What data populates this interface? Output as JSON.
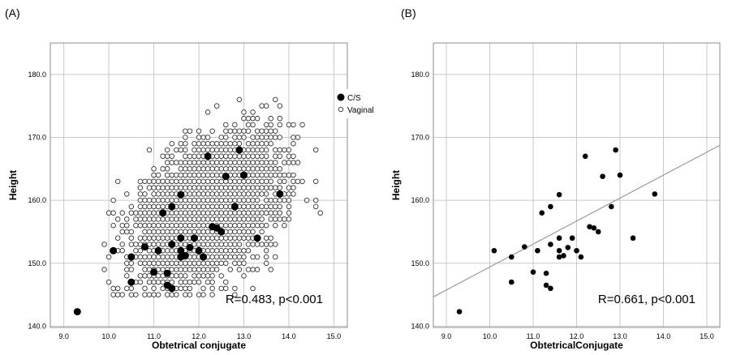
{
  "figure_labels": [
    "(A)",
    "(B)"
  ],
  "chart_data": [
    {
      "type": "scatter",
      "panel_label": "(A)",
      "xlabel": "Obtetrical conjugate",
      "ylabel": "Height",
      "xlim": [
        8.7,
        15.3
      ],
      "ylim": [
        139.8,
        185.0
      ],
      "xticks": [
        9.0,
        10.0,
        11.0,
        12.0,
        13.0,
        14.0,
        15.0
      ],
      "xtick_labels": [
        "9.0",
        "10.0",
        "11.0",
        "12.0",
        "13.0",
        "14.0",
        "15.0"
      ],
      "yticks": [
        140.0,
        150.0,
        160.0,
        170.0,
        180.0
      ],
      "ytick_labels": [
        "140.0",
        "150.0",
        "160.0",
        "170.0",
        "180.0"
      ],
      "grid": true,
      "legend": {
        "position": "top-right",
        "entries": [
          "C/S",
          "Vaginal"
        ]
      },
      "annotation": "R=0.483, p<0.001",
      "series": [
        {
          "name": "C/S",
          "marker": "filled-circle",
          "points": [
            [
              9.3,
              142.3
            ],
            [
              10.1,
              152.0
            ],
            [
              10.5,
              151.0
            ],
            [
              10.5,
              147.0
            ],
            [
              10.8,
              152.6
            ],
            [
              11.0,
              148.6
            ],
            [
              11.1,
              152.0
            ],
            [
              11.2,
              158.0
            ],
            [
              11.3,
              148.4
            ],
            [
              11.3,
              146.5
            ],
            [
              11.4,
              159.0
            ],
            [
              11.4,
              153.0
            ],
            [
              11.4,
              146.0
            ],
            [
              11.6,
              152.0
            ],
            [
              11.6,
              151.0
            ],
            [
              11.6,
              154.0
            ],
            [
              11.6,
              160.9
            ],
            [
              11.7,
              151.2
            ],
            [
              11.8,
              152.5
            ],
            [
              11.9,
              154.0
            ],
            [
              12.0,
              152.0
            ],
            [
              12.1,
              151.0
            ],
            [
              12.2,
              167.0
            ],
            [
              12.3,
              155.8
            ],
            [
              12.4,
              155.6
            ],
            [
              12.5,
              155.0
            ],
            [
              12.6,
              163.8
            ],
            [
              12.8,
              159.0
            ],
            [
              12.9,
              168.0
            ],
            [
              13.0,
              164.0
            ],
            [
              13.3,
              154.0
            ],
            [
              13.8,
              161.0
            ]
          ]
        },
        {
          "name": "Vaginal",
          "marker": "open-circle",
          "generator": {
            "count": 780,
            "seed": 7,
            "x_mean": 12.15,
            "x_sd": 0.78,
            "y_mean": 158.4,
            "y_sd": 5.6,
            "r": 0.47,
            "x_step": 0.1,
            "y_step": 1.0
          }
        }
      ]
    },
    {
      "type": "scatter",
      "panel_label": "(B)",
      "xlabel": "ObtetricalConjugate",
      "ylabel": "Height",
      "xlim": [
        8.7,
        15.3
      ],
      "ylim": [
        139.8,
        185.0
      ],
      "xticks": [
        9.0,
        10.0,
        11.0,
        12.0,
        13.0,
        14.0,
        15.0
      ],
      "xtick_labels": [
        "9.0",
        "10.0",
        "11.0",
        "12.0",
        "13.0",
        "14.0",
        "15.0"
      ],
      "yticks": [
        140.0,
        150.0,
        160.0,
        170.0,
        180.0
      ],
      "ytick_labels": [
        "140.0",
        "150.0",
        "160.0",
        "170.0",
        "180.0"
      ],
      "grid": true,
      "annotation": "R=0.661, p<0.001",
      "fit_line": {
        "intercept": 112.9,
        "slope": 3.65
      },
      "series": [
        {
          "marker": "filled-circle",
          "points": [
            [
              9.3,
              142.3
            ],
            [
              10.1,
              152.0
            ],
            [
              10.5,
              151.0
            ],
            [
              10.5,
              147.0
            ],
            [
              10.8,
              152.6
            ],
            [
              11.0,
              148.6
            ],
            [
              11.1,
              152.0
            ],
            [
              11.2,
              158.0
            ],
            [
              11.3,
              148.4
            ],
            [
              11.3,
              146.5
            ],
            [
              11.4,
              159.0
            ],
            [
              11.4,
              153.0
            ],
            [
              11.4,
              146.0
            ],
            [
              11.6,
              152.0
            ],
            [
              11.6,
              151.0
            ],
            [
              11.6,
              154.0
            ],
            [
              11.6,
              160.9
            ],
            [
              11.7,
              151.2
            ],
            [
              11.8,
              152.5
            ],
            [
              11.9,
              154.0
            ],
            [
              12.0,
              152.0
            ],
            [
              12.1,
              151.0
            ],
            [
              12.2,
              167.0
            ],
            [
              12.3,
              155.8
            ],
            [
              12.4,
              155.6
            ],
            [
              12.5,
              155.0
            ],
            [
              12.6,
              163.8
            ],
            [
              12.8,
              159.0
            ],
            [
              12.9,
              168.0
            ],
            [
              13.0,
              164.0
            ],
            [
              13.3,
              154.0
            ],
            [
              13.8,
              161.0
            ]
          ]
        }
      ]
    }
  ],
  "colors": {
    "grid": "#c8c8c8",
    "frame": "#8c8c8c",
    "fit_line": "#9a9a9a",
    "marker": "#000000"
  }
}
